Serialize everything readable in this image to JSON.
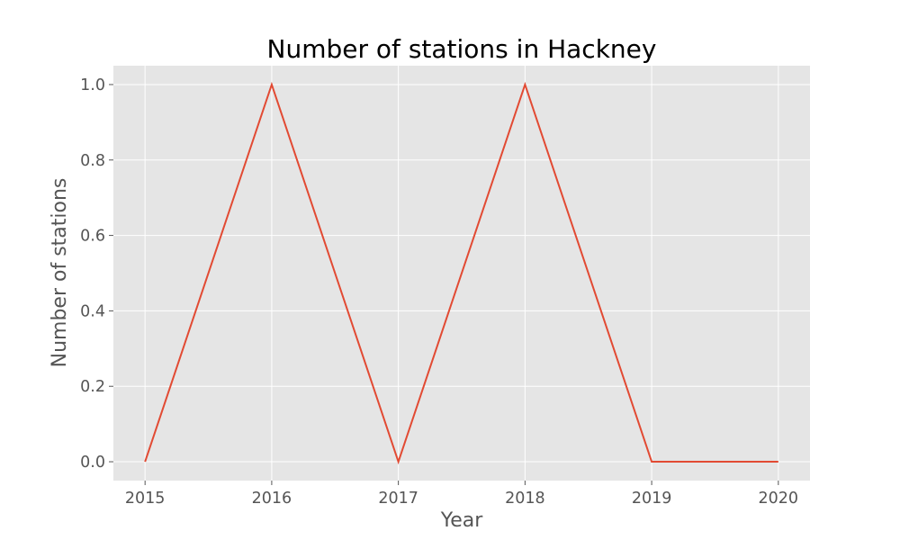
{
  "chart_data": {
    "type": "line",
    "title": "Number of stations in Hackney",
    "xlabel": "Year",
    "ylabel": "Number of stations",
    "x": [
      2015,
      2016,
      2017,
      2018,
      2019,
      2020
    ],
    "series": [
      {
        "values": [
          0,
          1,
          0,
          1,
          0,
          0
        ]
      }
    ],
    "xticks": [
      "2015",
      "2016",
      "2017",
      "2018",
      "2019",
      "2020"
    ],
    "yticks": [
      "0.0",
      "0.2",
      "0.4",
      "0.6",
      "0.8",
      "1.0"
    ],
    "xlim": [
      2014.75,
      2020.25
    ],
    "ylim": [
      -0.05,
      1.05
    ],
    "grid": true,
    "colors": {
      "line": "#e24a33",
      "plot_background": "#e5e5e5",
      "grid": "#ffffff",
      "text": "#555555"
    }
  }
}
